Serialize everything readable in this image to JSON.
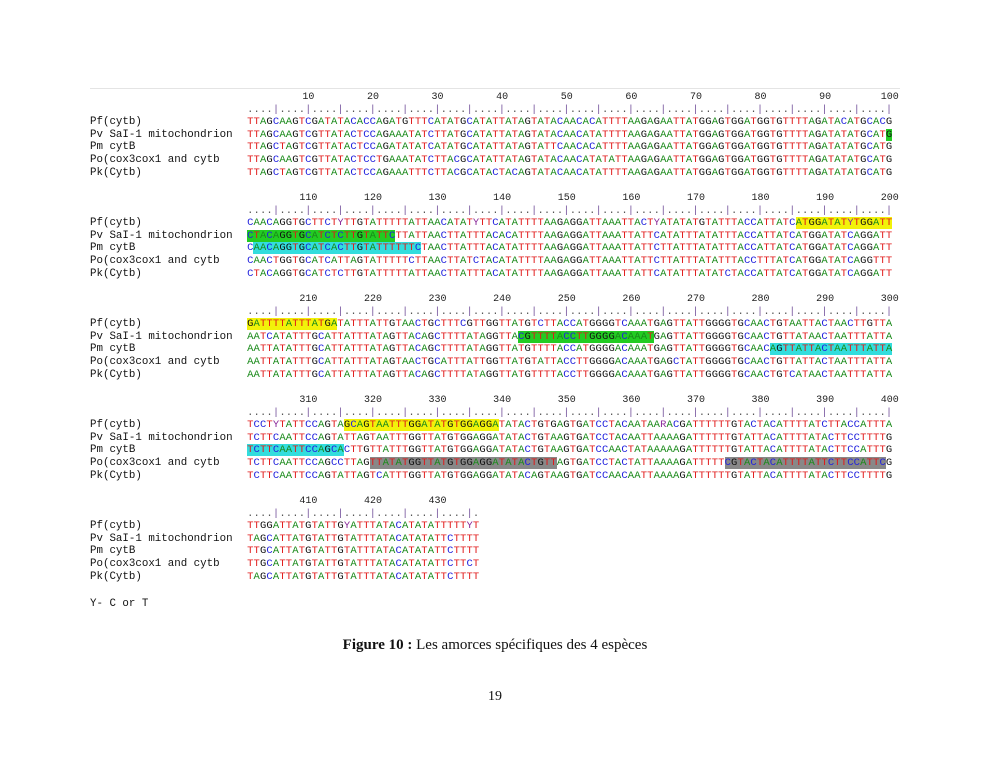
{
  "alignment": {
    "labels": [
      "Pf(cytb)",
      "Pv SaI-1 mitochondrion",
      "Pm cytB",
      "Po(cox3cox1 and cytb",
      "Pk(Cytb)"
    ],
    "base_colors": {
      "A": "#1a8a1a",
      "T": "#e01818",
      "G": "#111111",
      "C": "#2222dd",
      "Y": "#8a2a9a",
      "R": "#8a2a9a"
    },
    "blocks": [
      {
        "start": 1,
        "ticks": [
          "10",
          "20",
          "30",
          "40",
          "50",
          "60",
          "70",
          "80",
          "90",
          "100"
        ],
        "rows": [
          "TTAGCAAGTCGATATACACCAGATGTTTCATATGCATATTATAGTATACAACACATTTTAAGAGAATTATGGAGTGGATGGTGTTTTAGATACATGCACG",
          "TTAGCAAGTCGTTATACTCCAGAAATATCTTATGCATATTATAGTATACAACATATTTTAAGAGAATTATGGAGTGGATGGTGTTTTAGATATATGCATG",
          "TTAGCTAGTCGTTATACTCCAGATATATCATATGCATATTATAGTATTCAACACATTTTAAGAGAATTATGGAGTGGATGGTGTTTTAGATATATGCATG",
          "TTAGCAAGTCGTTATACTCCTGAAATATCTTACGCATATTATAGTATACAACATATATTAAGAGAATTATGGAGTGGATGGTGTTTTAGATATATGCATG",
          "TTAGCTAGTCGTTATACTCCAGAAATTTCTTACGCATACTACAGTATACAACATATTTTAAGAGAATTATGGAGTGGATGGTGTTTTAGATATATGCATG"
        ]
      },
      {
        "start": 101,
        "ticks": [
          "110",
          "120",
          "130",
          "140",
          "150",
          "160",
          "170",
          "180",
          "190",
          "200"
        ],
        "rows": [
          "CAACAGGTGCTTCTYTTGTATTTTTATTAACATATYTTCATATTTTAAGAGGATTAAATTACTYATATATGTATTTACCATTATCATGGATATYTGGATT",
          "CTACAGGTGCATCTCTTGTATTCTTATTAACTTATTTACACATTTTAAGAGGATTAAATTATTCATATTTATATTTACCATTATCATGGATATCAGGATT",
          "CAACAGGTGCATCACTTGTATTTTTTCTAACTTATTTACATATTTTAAGAGGATTAAATTATTCTTATTTATATTTACCATTATCATGGATATCAGGATT",
          "CAACTGGTGCATCATTAGTATTTTTCTTAACTTATCTACATATTTTAAGAGGATTAAATTATTCTTATTTATATTTACCTTTATCATGGATATCAGGTTT",
          "CTACAGGTGCATCTCTTGTATTTTTATTAACTTATTTACATATTTTAAGAGGATTAAATTATTCATATTTATATCTACCATTATCATGGATATCAGGATT"
        ]
      },
      {
        "start": 201,
        "ticks": [
          "210",
          "220",
          "230",
          "240",
          "250",
          "260",
          "270",
          "280",
          "290",
          "300"
        ],
        "rows": [
          "GATTTTATTTATGATATTTATTGTAACTGCTTTCGTTGGTTATGTCTTACCATGGGGTCAAATGAGTTATTGGGGTGCAACTGTAATTACTAACTTGTTA",
          "AATCATATTTGCATTATTTATAGTTACAGCTTTTATAGGTTACGTTTTACCTTGGGGACAAATGAGTTATTGGGGTGCAACTGTTATAACTAATTTATTA",
          "AATTATATTTGCATTATTTATAGTTACAGCTTTTATAGGTTATGTTTTACCATGGGGACAAATGAGTTATTGGGGTGCAACAGTTATTACTAATTTATTA",
          "AATTATATTTGCATTATTTATAGTAACTGCATTTATTGGTTATGTATTACCTTGGGGACAAATGAGCTATTGGGGTGCAACTGTTATTACTAATTTATTA",
          "AATTATATTTGCATTATTTATAGTTACAGCTTTTATAGGTTATGTTTTACCTTGGGGACAAATGAGTTATTGGGGTGCAACTGTCATAACTAATTTATTA"
        ]
      },
      {
        "start": 301,
        "ticks": [
          "310",
          "320",
          "330",
          "340",
          "350",
          "360",
          "370",
          "380",
          "390",
          "400"
        ],
        "rows": [
          "TCCTYTATTCCAGTAGCAGTAATTTGGATATGTGGAGGATATACTGTGAGTGATCCTACAATAARACGATTTTTTGTACTACATTTTATCTTACCATTTA",
          "TCTTCAATTCCAGTATTAGTAATTTGGTTATGTGGAGGATATACTGTAAGTGATCCTACAATTAAAAGATTTTTTGTATTACATTTTATACTTCCTTTTG",
          "TCTTCAATTCCAGCACTTGTTATTTGGTTATGTGGAGGATATACTGTAAGTGATCCAACTATAAAAAGATTTTTTGTATTACATTTTATACTTCCATTTG",
          "TCTTCAATTCCAGCCTTAGTTATATGGTTATGTGGAGGATATACTGTTAGTGATCCTACTATTAAAAGATTTTTCGTACTACATTTTATTCTTCCATTCG",
          "TCTTCAATTCCAGTATTAGTCATTTGGTTATGTGGAGGATATACAGTAAGTGATCCAACAATTAAAAGATTTTTTGTATTACATTTTATACTTCCTTTTG"
        ]
      },
      {
        "start": 401,
        "ticks": [
          "410",
          "420",
          "430"
        ],
        "rows": [
          "TTGGATTATGTATTGYATTTATACATATATTTTTYT",
          "TAGCATTATGTATTGTATTTATACATATATTCTTTT",
          "TTGCATTATGTATTGTATTTATACATATATTCTTTT",
          "TTGCATTATGTATTGTATTTATACATATATTCTTCT",
          "TAGCATTATGTATTGTATTTATACATATATTCTTTT"
        ]
      }
    ],
    "highlights": [
      {
        "row": 1,
        "from": 100,
        "to": 100,
        "color": "#22cc22"
      },
      {
        "row": 0,
        "from": 186,
        "to": 200,
        "color": "#f2f20a"
      },
      {
        "row": 1,
        "from": 101,
        "to": 123,
        "color": "#22cc22"
      },
      {
        "row": 2,
        "from": 102,
        "to": 127,
        "color": "#33dddd"
      },
      {
        "row": 0,
        "from": 201,
        "to": 214,
        "color": "#f2f20a"
      },
      {
        "row": 1,
        "from": 243,
        "to": 263,
        "color": "#22cc22"
      },
      {
        "row": 2,
        "from": 282,
        "to": 300,
        "color": "#33dddd"
      },
      {
        "row": 0,
        "from": 316,
        "to": 339,
        "color": "#f2f20a"
      },
      {
        "row": 2,
        "from": 301,
        "to": 315,
        "color": "#33dddd"
      },
      {
        "row": 3,
        "from": 320,
        "to": 348,
        "color": "#888888"
      },
      {
        "row": 3,
        "from": 375,
        "to": 399,
        "color": "#888888"
      }
    ]
  },
  "note": "Y- C or T",
  "caption": {
    "label": "Figure 10 :",
    "text": " Les amorces spécifiques des 4 espèces"
  },
  "page_number": "19"
}
